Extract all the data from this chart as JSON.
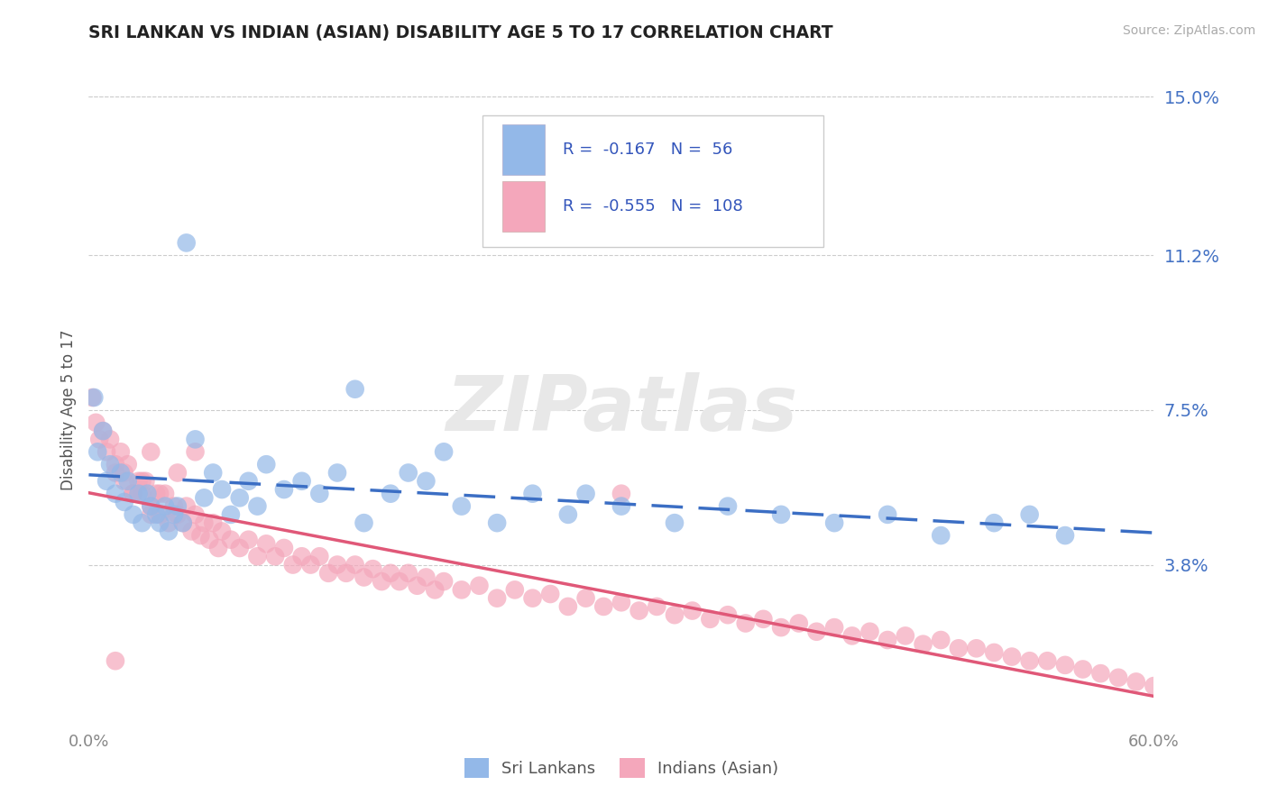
{
  "title": "SRI LANKAN VS INDIAN (ASIAN) DISABILITY AGE 5 TO 17 CORRELATION CHART",
  "source": "Source: ZipAtlas.com",
  "ylabel": "Disability Age 5 to 17",
  "xlim": [
    0.0,
    0.6
  ],
  "ylim": [
    0.0,
    0.15
  ],
  "yticks": [
    0.038,
    0.075,
    0.112,
    0.15
  ],
  "ytick_labels": [
    "3.8%",
    "7.5%",
    "11.2%",
    "15.0%"
  ],
  "xticks": [
    0.0,
    0.6
  ],
  "xtick_labels": [
    "0.0%",
    "60.0%"
  ],
  "sri_lankan_color": "#93b8e8",
  "indian_color": "#f4a7bb",
  "sri_lankan_line_color": "#3b6ec4",
  "indian_line_color": "#e05878",
  "sri_lankan_R": -0.167,
  "sri_lankan_N": 56,
  "indian_R": -0.555,
  "indian_N": 108,
  "background_color": "#ffffff",
  "grid_color": "#cccccc",
  "legend_label_1": "Sri Lankans",
  "legend_label_2": "Indians (Asian)",
  "sri_lankans_x": [
    0.003,
    0.005,
    0.008,
    0.01,
    0.012,
    0.015,
    0.018,
    0.02,
    0.022,
    0.025,
    0.028,
    0.03,
    0.033,
    0.035,
    0.038,
    0.04,
    0.043,
    0.045,
    0.048,
    0.05,
    0.053,
    0.055,
    0.06,
    0.065,
    0.07,
    0.075,
    0.08,
    0.085,
    0.09,
    0.095,
    0.1,
    0.11,
    0.12,
    0.13,
    0.14,
    0.155,
    0.17,
    0.19,
    0.21,
    0.23,
    0.25,
    0.27,
    0.3,
    0.33,
    0.36,
    0.39,
    0.42,
    0.45,
    0.48,
    0.51,
    0.53,
    0.55,
    0.15,
    0.18,
    0.2,
    0.28
  ],
  "sri_lankans_y": [
    0.078,
    0.065,
    0.07,
    0.058,
    0.062,
    0.055,
    0.06,
    0.053,
    0.058,
    0.05,
    0.055,
    0.048,
    0.055,
    0.052,
    0.05,
    0.048,
    0.052,
    0.046,
    0.05,
    0.052,
    0.048,
    0.115,
    0.068,
    0.054,
    0.06,
    0.056,
    0.05,
    0.054,
    0.058,
    0.052,
    0.062,
    0.056,
    0.058,
    0.055,
    0.06,
    0.048,
    0.055,
    0.058,
    0.052,
    0.048,
    0.055,
    0.05,
    0.052,
    0.048,
    0.052,
    0.05,
    0.048,
    0.05,
    0.045,
    0.048,
    0.05,
    0.045,
    0.08,
    0.06,
    0.065,
    0.055
  ],
  "indians_x": [
    0.002,
    0.004,
    0.006,
    0.008,
    0.01,
    0.012,
    0.015,
    0.018,
    0.02,
    0.022,
    0.025,
    0.028,
    0.03,
    0.032,
    0.035,
    0.038,
    0.04,
    0.043,
    0.045,
    0.048,
    0.05,
    0.053,
    0.055,
    0.058,
    0.06,
    0.063,
    0.065,
    0.068,
    0.07,
    0.073,
    0.075,
    0.08,
    0.085,
    0.09,
    0.095,
    0.1,
    0.105,
    0.11,
    0.115,
    0.12,
    0.125,
    0.13,
    0.135,
    0.14,
    0.145,
    0.15,
    0.155,
    0.16,
    0.165,
    0.17,
    0.175,
    0.18,
    0.185,
    0.19,
    0.195,
    0.2,
    0.21,
    0.22,
    0.23,
    0.24,
    0.25,
    0.26,
    0.27,
    0.28,
    0.29,
    0.3,
    0.31,
    0.32,
    0.33,
    0.34,
    0.35,
    0.36,
    0.37,
    0.38,
    0.39,
    0.4,
    0.41,
    0.42,
    0.43,
    0.44,
    0.45,
    0.46,
    0.47,
    0.48,
    0.49,
    0.5,
    0.51,
    0.52,
    0.53,
    0.54,
    0.55,
    0.56,
    0.57,
    0.58,
    0.59,
    0.6,
    0.015,
    0.02,
    0.025,
    0.03,
    0.035,
    0.04,
    0.025,
    0.035,
    0.3,
    0.015,
    0.05,
    0.06
  ],
  "indians_y": [
    0.078,
    0.072,
    0.068,
    0.07,
    0.065,
    0.068,
    0.062,
    0.065,
    0.06,
    0.062,
    0.055,
    0.058,
    0.055,
    0.058,
    0.052,
    0.055,
    0.05,
    0.055,
    0.048,
    0.052,
    0.05,
    0.048,
    0.052,
    0.046,
    0.05,
    0.045,
    0.048,
    0.044,
    0.048,
    0.042,
    0.046,
    0.044,
    0.042,
    0.044,
    0.04,
    0.043,
    0.04,
    0.042,
    0.038,
    0.04,
    0.038,
    0.04,
    0.036,
    0.038,
    0.036,
    0.038,
    0.035,
    0.037,
    0.034,
    0.036,
    0.034,
    0.036,
    0.033,
    0.035,
    0.032,
    0.034,
    0.032,
    0.033,
    0.03,
    0.032,
    0.03,
    0.031,
    0.028,
    0.03,
    0.028,
    0.029,
    0.027,
    0.028,
    0.026,
    0.027,
    0.025,
    0.026,
    0.024,
    0.025,
    0.023,
    0.024,
    0.022,
    0.023,
    0.021,
    0.022,
    0.02,
    0.021,
    0.019,
    0.02,
    0.018,
    0.018,
    0.017,
    0.016,
    0.015,
    0.015,
    0.014,
    0.013,
    0.012,
    0.011,
    0.01,
    0.009,
    0.06,
    0.058,
    0.055,
    0.058,
    0.05,
    0.055,
    0.055,
    0.065,
    0.055,
    0.015,
    0.06,
    0.065
  ]
}
